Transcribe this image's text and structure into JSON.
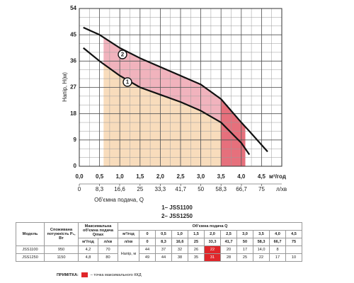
{
  "chart_data": {
    "type": "line",
    "x": [
      0.1,
      0.5,
      1.0,
      1.5,
      2.0,
      2.5,
      3.0,
      3.5,
      4.0,
      4.2,
      4.65
    ],
    "series": [
      {
        "name": "1– JSS1100",
        "label": "1",
        "color": "#111111",
        "values": [
          40.5,
          36,
          31,
          27,
          24.5,
          22,
          19,
          15,
          8,
          4,
          null
        ]
      },
      {
        "name": "2– JSS1250",
        "label": "2",
        "color": "#111111",
        "values": [
          47.5,
          45,
          40.5,
          37,
          34,
          31,
          28,
          23,
          15,
          12,
          5
        ]
      }
    ],
    "xlim": [
      0,
      5
    ],
    "ylim": [
      0,
      54
    ],
    "xticks": [
      {
        "value": 0,
        "label": "0,0"
      },
      {
        "value": 0.5,
        "label": "0,5"
      },
      {
        "value": 1,
        "label": "1,0"
      },
      {
        "value": 1.5,
        "label": "1,5"
      },
      {
        "value": 2,
        "label": "2,0"
      },
      {
        "value": 2.5,
        "label": "2,5"
      },
      {
        "value": 3,
        "label": "3,0"
      },
      {
        "value": 3.5,
        "label": "3,5"
      },
      {
        "value": 4,
        "label": "4,0"
      },
      {
        "value": 4.5,
        "label": "4,5"
      }
    ],
    "x2lim": [
      0,
      83.3
    ],
    "x2ticks": [
      0,
      {
        "value": 8.3,
        "label": "8,3"
      },
      {
        "value": 16.6,
        "label": "16,6"
      },
      25,
      {
        "value": 33.3,
        "label": "33,3"
      },
      {
        "value": 41.7,
        "label": "41,7"
      },
      50,
      {
        "value": 58.3,
        "label": "58,3"
      },
      {
        "value": 66.7,
        "label": "66,7"
      },
      75
    ],
    "yticks": [
      0,
      9,
      18,
      27,
      36,
      45,
      54
    ],
    "x_unit": "м³/год",
    "x2_unit": "л/хв",
    "xlabel": "Об'ємна подача, Q",
    "ylabel": "Напір, H(м)",
    "grid": true,
    "shaded_range": [
      0.6,
      3.5
    ],
    "red_range": [
      3.5,
      4.1
    ],
    "fill_colors": {
      "under": "#f8dcbc",
      "between": "#f1b3bd",
      "red": "#e6707c"
    }
  },
  "table": {
    "head": {
      "model": "Модель",
      "power": "Споживана потужність P₁, Вт",
      "qmax": "Максимальна об'ємна подача Qmax",
      "q": "Об'ємна подача Q",
      "qmax_units": [
        "м³/год",
        "л/хв"
      ],
      "q_units": [
        "м³/год",
        "л/хв"
      ],
      "q_m3h": [
        "0",
        "0,5",
        "1,0",
        "1,5",
        "2,0",
        "2,5",
        "3,0",
        "3,5",
        "4,0",
        "4,5"
      ],
      "q_lpm": [
        "0",
        "8,3",
        "16,6",
        "25",
        "33,3",
        "41,7",
        "50",
        "58,3",
        "66,7",
        "75"
      ]
    },
    "head_label": "Напір, м",
    "rows": [
      {
        "model": "JSS1100",
        "power": "950",
        "qmax": [
          "4,2",
          "70"
        ],
        "heads": [
          "44",
          "37",
          "32",
          "26",
          "22",
          "20",
          "17",
          "14,0",
          "8",
          null
        ]
      },
      {
        "model": "JSS1250",
        "power": "1150",
        "qmax": [
          "4,8",
          "80"
        ],
        "heads": [
          "49",
          "44",
          "38",
          "35",
          "31",
          "28",
          "25",
          "22",
          "17",
          "10"
        ]
      }
    ],
    "highlight_column": 4
  },
  "note": {
    "label": "ПРИМІТКА:",
    "text": "– точка максимального ККД"
  }
}
